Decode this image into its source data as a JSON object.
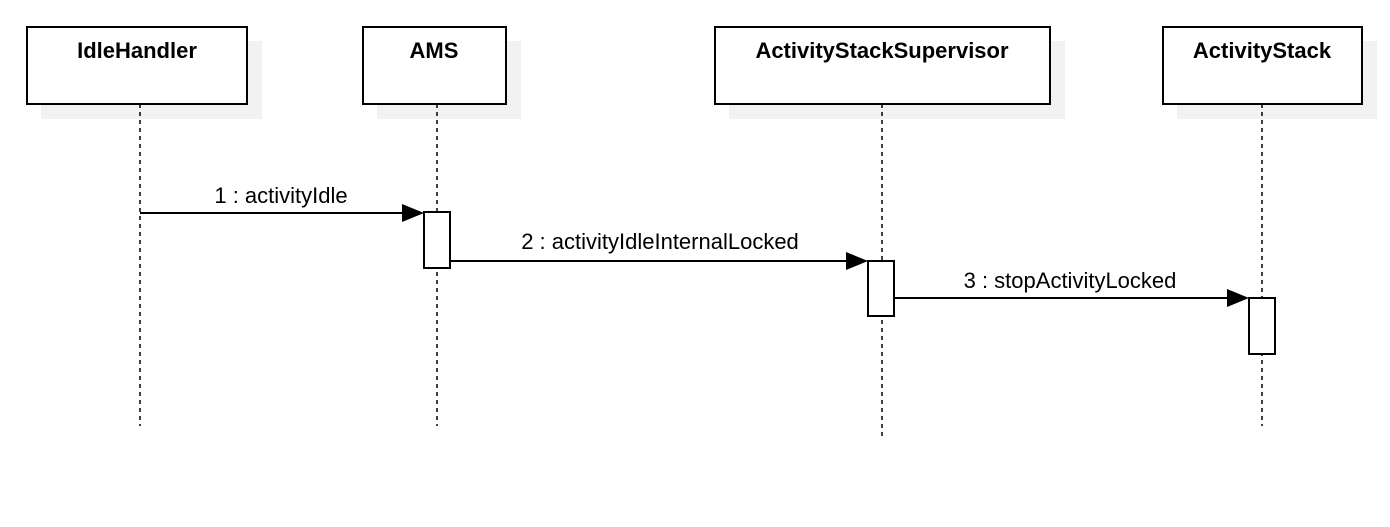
{
  "diagram": {
    "type": "sequence",
    "participants": [
      {
        "id": "idle_handler",
        "label": "IdleHandler"
      },
      {
        "id": "ams",
        "label": "AMS"
      },
      {
        "id": "stack_supervisor",
        "label": "ActivityStackSupervisor"
      },
      {
        "id": "activity_stack",
        "label": "ActivityStack"
      }
    ],
    "messages": [
      {
        "from": "idle_handler",
        "to": "ams",
        "label": "1 : activityIdle"
      },
      {
        "from": "ams",
        "to": "stack_supervisor",
        "label": "2 : activityIdleInternalLocked"
      },
      {
        "from": "stack_supervisor",
        "to": "activity_stack",
        "label": "3 : stopActivityLocked"
      }
    ]
  }
}
